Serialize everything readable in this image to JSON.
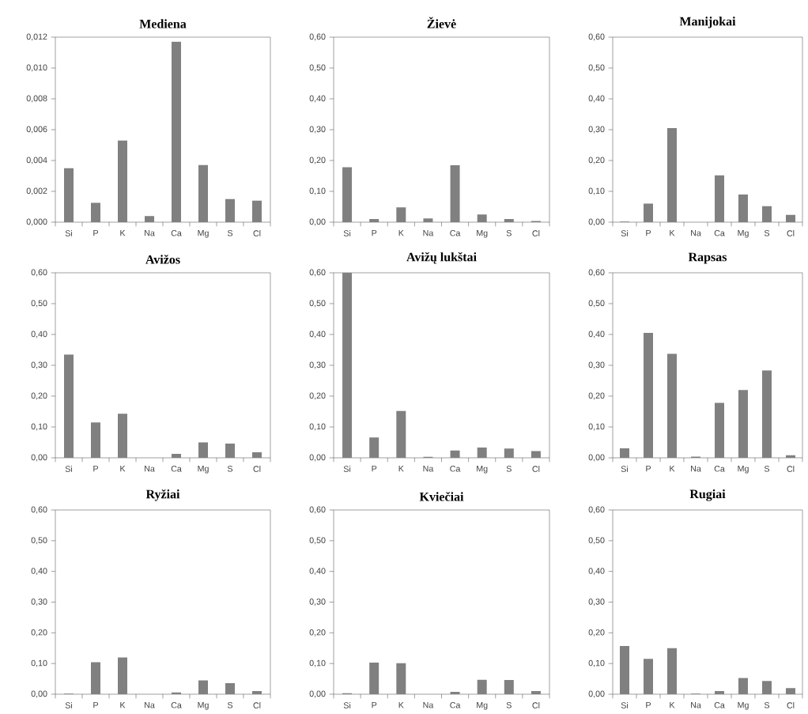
{
  "chart_data": [
    {
      "type": "bar",
      "title": "Mediena",
      "categories": [
        "Si",
        "P",
        "K",
        "Na",
        "Ca",
        "Mg",
        "S",
        "Cl"
      ],
      "values": [
        0.0035,
        0.00125,
        0.0053,
        0.0004,
        0.0117,
        0.0037,
        0.0015,
        0.0014
      ],
      "color": "#808080",
      "ylim": [
        0,
        0.012
      ],
      "yticks": [
        {
          "value": 0,
          "label": "0,000"
        },
        {
          "value": 0.002,
          "label": "0,002"
        },
        {
          "value": 0.004,
          "label": "0,004"
        },
        {
          "value": 0.006,
          "label": "0,006"
        },
        {
          "value": 0.008,
          "label": "0,008"
        },
        {
          "value": 0.01,
          "label": "0,010"
        },
        {
          "value": 0.012,
          "label": "0,012"
        }
      ]
    },
    {
      "type": "bar",
      "title": "Žievė",
      "categories": [
        "Si",
        "P",
        "K",
        "Na",
        "Ca",
        "Mg",
        "S",
        "Cl"
      ],
      "values": [
        0.178,
        0.01,
        0.048,
        0.012,
        0.185,
        0.025,
        0.01,
        0.004
      ],
      "color": "#808080",
      "ylim": [
        0,
        0.6
      ],
      "yticks": [
        {
          "value": 0,
          "label": "0,00"
        },
        {
          "value": 0.1,
          "label": "0,10"
        },
        {
          "value": 0.2,
          "label": "0,20"
        },
        {
          "value": 0.3,
          "label": "0,30"
        },
        {
          "value": 0.4,
          "label": "0,40"
        },
        {
          "value": 0.5,
          "label": "0,50"
        },
        {
          "value": 0.6,
          "label": "0,60"
        }
      ]
    },
    {
      "type": "bar",
      "title": "Manijokai",
      "categories": [
        "Si",
        "P",
        "K",
        "Na",
        "Ca",
        "Mg",
        "S",
        "Cl"
      ],
      "values": [
        0.002,
        0.06,
        0.305,
        0,
        0.152,
        0.09,
        0.052,
        0.024
      ],
      "color": "#808080",
      "ylim": [
        0,
        0.6
      ],
      "yticks": [
        {
          "value": 0,
          "label": "0,00"
        },
        {
          "value": 0.1,
          "label": "0,10"
        },
        {
          "value": 0.2,
          "label": "0,20"
        },
        {
          "value": 0.3,
          "label": "0,30"
        },
        {
          "value": 0.4,
          "label": "0,40"
        },
        {
          "value": 0.5,
          "label": "0,50"
        },
        {
          "value": 0.6,
          "label": "0,60"
        }
      ]
    },
    {
      "type": "bar",
      "title": "Avižos",
      "categories": [
        "Si",
        "P",
        "K",
        "Na",
        "Ca",
        "Mg",
        "S",
        "Cl"
      ],
      "values": [
        0.335,
        0.115,
        0.143,
        0,
        0.013,
        0.05,
        0.046,
        0.018
      ],
      "color": "#808080",
      "ylim": [
        0,
        0.6
      ],
      "yticks": [
        {
          "value": 0,
          "label": "0,00"
        },
        {
          "value": 0.1,
          "label": "0,10"
        },
        {
          "value": 0.2,
          "label": "0,20"
        },
        {
          "value": 0.3,
          "label": "0,30"
        },
        {
          "value": 0.4,
          "label": "0,40"
        },
        {
          "value": 0.5,
          "label": "0,50"
        },
        {
          "value": 0.6,
          "label": "0,60"
        }
      ]
    },
    {
      "type": "bar",
      "title": "Avižų lukštai",
      "categories": [
        "Si",
        "P",
        "K",
        "Na",
        "Ca",
        "Mg",
        "S",
        "Cl"
      ],
      "values": [
        0.6,
        0.066,
        0.152,
        0.003,
        0.024,
        0.033,
        0.03,
        0.022
      ],
      "color": "#808080",
      "ylim": [
        0,
        0.6
      ],
      "yticks": [
        {
          "value": 0,
          "label": "0,00"
        },
        {
          "value": 0.1,
          "label": "0,10"
        },
        {
          "value": 0.2,
          "label": "0,20"
        },
        {
          "value": 0.3,
          "label": "0,30"
        },
        {
          "value": 0.4,
          "label": "0,40"
        },
        {
          "value": 0.5,
          "label": "0,50"
        },
        {
          "value": 0.6,
          "label": "0,60"
        }
      ]
    },
    {
      "type": "bar",
      "title": "Rapsas",
      "categories": [
        "Si",
        "P",
        "K",
        "Na",
        "Ca",
        "Mg",
        "S",
        "Cl"
      ],
      "values": [
        0.031,
        0.405,
        0.337,
        0.004,
        0.178,
        0.22,
        0.283,
        0.008
      ],
      "color": "#808080",
      "ylim": [
        0,
        0.6
      ],
      "yticks": [
        {
          "value": 0,
          "label": "0,00"
        },
        {
          "value": 0.1,
          "label": "0,10"
        },
        {
          "value": 0.2,
          "label": "0,20"
        },
        {
          "value": 0.3,
          "label": "0,30"
        },
        {
          "value": 0.4,
          "label": "0,40"
        },
        {
          "value": 0.5,
          "label": "0,50"
        },
        {
          "value": 0.6,
          "label": "0,60"
        }
      ]
    },
    {
      "type": "bar",
      "title": "Ryžiai",
      "categories": [
        "Si",
        "P",
        "K",
        "Na",
        "Ca",
        "Mg",
        "S",
        "Cl"
      ],
      "values": [
        0.002,
        0.104,
        0.12,
        0,
        0.006,
        0.045,
        0.036,
        0.01
      ],
      "color": "#808080",
      "ylim": [
        0,
        0.6
      ],
      "yticks": [
        {
          "value": 0,
          "label": "0,00"
        },
        {
          "value": 0.1,
          "label": "0,10"
        },
        {
          "value": 0.2,
          "label": "0,20"
        },
        {
          "value": 0.3,
          "label": "0,30"
        },
        {
          "value": 0.4,
          "label": "0,40"
        },
        {
          "value": 0.5,
          "label": "0,50"
        },
        {
          "value": 0.6,
          "label": "0,60"
        }
      ]
    },
    {
      "type": "bar",
      "title": "Kviečiai",
      "categories": [
        "Si",
        "P",
        "K",
        "Na",
        "Ca",
        "Mg",
        "S",
        "Cl"
      ],
      "values": [
        0.003,
        0.103,
        0.101,
        0,
        0.008,
        0.047,
        0.046,
        0.01
      ],
      "color": "#808080",
      "ylim": [
        0,
        0.6
      ],
      "yticks": [
        {
          "value": 0,
          "label": "0,00"
        },
        {
          "value": 0.1,
          "label": "0,10"
        },
        {
          "value": 0.2,
          "label": "0,20"
        },
        {
          "value": 0.3,
          "label": "0,30"
        },
        {
          "value": 0.4,
          "label": "0,40"
        },
        {
          "value": 0.5,
          "label": "0,50"
        },
        {
          "value": 0.6,
          "label": "0,60"
        }
      ]
    },
    {
      "type": "bar",
      "title": "Rugiai",
      "categories": [
        "Si",
        "P",
        "K",
        "Na",
        "Ca",
        "Mg",
        "S",
        "Cl"
      ],
      "values": [
        0.157,
        0.115,
        0.15,
        0.002,
        0.01,
        0.053,
        0.043,
        0.02
      ],
      "color": "#808080",
      "ylim": [
        0,
        0.6
      ],
      "yticks": [
        {
          "value": 0,
          "label": "0,00"
        },
        {
          "value": 0.1,
          "label": "0,10"
        },
        {
          "value": 0.2,
          "label": "0,20"
        },
        {
          "value": 0.3,
          "label": "0,30"
        },
        {
          "value": 0.4,
          "label": "0,40"
        },
        {
          "value": 0.5,
          "label": "0,50"
        },
        {
          "value": 0.6,
          "label": "0,60"
        }
      ]
    }
  ]
}
